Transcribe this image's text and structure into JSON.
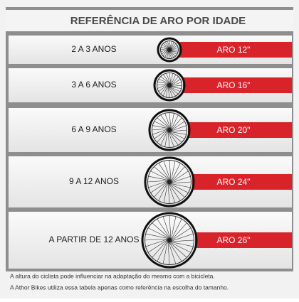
{
  "header": {
    "title": "REFERÊNCIA DE ARO POR IDADE"
  },
  "rows": [
    {
      "age": "2 A 3 ANOS",
      "rim": "ARO 12\""
    },
    {
      "age": "3 A 6 ANOS",
      "rim": "ARO 16\""
    },
    {
      "age": "6 A 9 ANOS",
      "rim": "ARO 20\""
    },
    {
      "age": "9 A 12 ANOS",
      "rim": "ARO 24\""
    },
    {
      "age": "A PARTIR DE 12 ANOS",
      "rim": "ARO 26\""
    }
  ],
  "footnote": [
    "A altura do ciclista pode influenciar na adaptação do mesmo com a bicicleta.",
    "A Athor Bikes utiliza essa tabela apenas como referência na escolha do tamanho."
  ]
}
